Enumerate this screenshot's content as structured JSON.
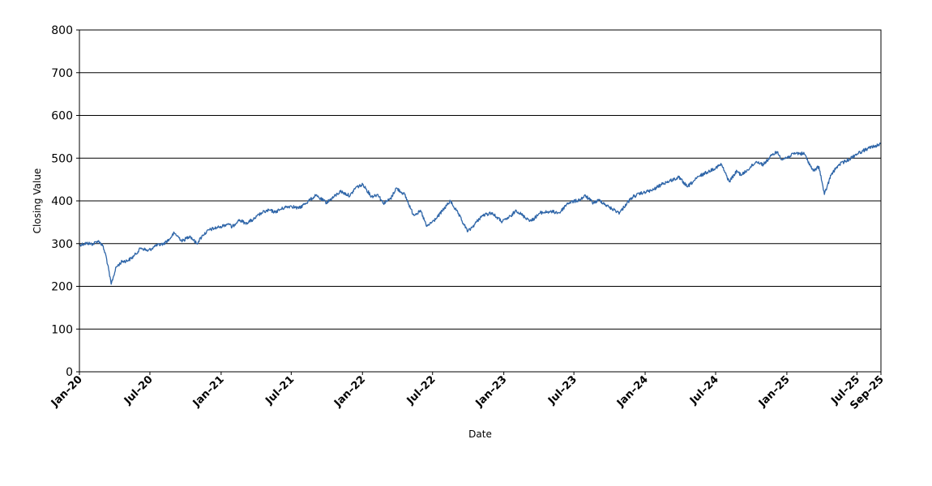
{
  "chart_data": {
    "type": "line",
    "title": "",
    "xlabel": "Date",
    "ylabel": "Closing Value",
    "ylim": [
      0,
      800
    ],
    "yticks": [
      "0",
      "100",
      "200",
      "300",
      "400",
      "500",
      "600",
      "700",
      "800"
    ],
    "xlim": [
      "2020-01-01",
      "2025-09-01"
    ],
    "xticks": [
      {
        "label": "Jan–20",
        "date": "2020-01-01"
      },
      {
        "label": "Jul–20",
        "date": "2020-07-01"
      },
      {
        "label": "Jan–21",
        "date": "2021-01-01"
      },
      {
        "label": "Jul–21",
        "date": "2021-07-01"
      },
      {
        "label": "Jan–22",
        "date": "2022-01-01"
      },
      {
        "label": "Jul–22",
        "date": "2022-07-01"
      },
      {
        "label": "Jan–23",
        "date": "2023-01-01"
      },
      {
        "label": "Jul–23",
        "date": "2023-07-01"
      },
      {
        "label": "Jan–24",
        "date": "2024-01-01"
      },
      {
        "label": "Jul–24",
        "date": "2024-07-01"
      },
      {
        "label": "Jan–25",
        "date": "2025-01-01"
      },
      {
        "label": "Jul–25",
        "date": "2025-07-01"
      },
      {
        "label": "Sep–25",
        "date": "2025-09-01"
      }
    ],
    "grid": true,
    "line_color": "#2e65a8",
    "series": [
      {
        "points": [
          [
            "2020-01-01",
            297
          ],
          [
            "2020-01-20",
            301
          ],
          [
            "2020-02-05",
            299
          ],
          [
            "2020-02-19",
            307
          ],
          [
            "2020-03-01",
            295
          ],
          [
            "2020-03-10",
            270
          ],
          [
            "2020-03-23",
            205
          ],
          [
            "2020-04-05",
            245
          ],
          [
            "2020-04-20",
            258
          ],
          [
            "2020-05-05",
            260
          ],
          [
            "2020-05-20",
            270
          ],
          [
            "2020-06-08",
            290
          ],
          [
            "2020-06-26",
            283
          ],
          [
            "2020-07-15",
            294
          ],
          [
            "2020-08-05",
            300
          ],
          [
            "2020-08-20",
            310
          ],
          [
            "2020-09-02",
            325
          ],
          [
            "2020-09-23",
            306
          ],
          [
            "2020-10-12",
            318
          ],
          [
            "2020-10-30",
            300
          ],
          [
            "2020-11-15",
            320
          ],
          [
            "2020-12-01",
            332
          ],
          [
            "2020-12-31",
            340
          ],
          [
            "2021-01-20",
            347
          ],
          [
            "2021-01-29",
            338
          ],
          [
            "2021-02-15",
            356
          ],
          [
            "2021-03-05",
            348
          ],
          [
            "2021-03-25",
            356
          ],
          [
            "2021-04-15",
            372
          ],
          [
            "2021-05-05",
            378
          ],
          [
            "2021-05-20",
            374
          ],
          [
            "2021-06-15",
            385
          ],
          [
            "2021-07-01",
            388
          ],
          [
            "2021-07-20",
            382
          ],
          [
            "2021-08-15",
            400
          ],
          [
            "2021-09-02",
            412
          ],
          [
            "2021-09-30",
            396
          ],
          [
            "2021-10-20",
            410
          ],
          [
            "2021-11-05",
            422
          ],
          [
            "2021-11-30",
            412
          ],
          [
            "2021-12-15",
            432
          ],
          [
            "2022-01-03",
            438
          ],
          [
            "2022-01-24",
            410
          ],
          [
            "2022-02-10",
            415
          ],
          [
            "2022-02-24",
            394
          ],
          [
            "2022-03-15",
            405
          ],
          [
            "2022-03-29",
            430
          ],
          [
            "2022-04-20",
            415
          ],
          [
            "2022-05-12",
            368
          ],
          [
            "2022-06-01",
            375
          ],
          [
            "2022-06-16",
            340
          ],
          [
            "2022-07-10",
            358
          ],
          [
            "2022-08-16",
            400
          ],
          [
            "2022-09-05",
            370
          ],
          [
            "2022-09-30",
            328
          ],
          [
            "2022-10-13",
            340
          ],
          [
            "2022-11-05",
            365
          ],
          [
            "2022-11-30",
            372
          ],
          [
            "2022-12-28",
            351
          ],
          [
            "2023-01-20",
            365
          ],
          [
            "2023-02-02",
            378
          ],
          [
            "2023-02-24",
            362
          ],
          [
            "2023-03-13",
            353
          ],
          [
            "2023-04-05",
            372
          ],
          [
            "2023-05-01",
            375
          ],
          [
            "2023-05-25",
            372
          ],
          [
            "2023-06-15",
            395
          ],
          [
            "2023-07-15",
            402
          ],
          [
            "2023-07-31",
            412
          ],
          [
            "2023-08-20",
            395
          ],
          [
            "2023-09-05",
            402
          ],
          [
            "2023-09-30",
            385
          ],
          [
            "2023-10-27",
            372
          ],
          [
            "2023-11-15",
            395
          ],
          [
            "2023-12-01",
            410
          ],
          [
            "2023-12-28",
            420
          ],
          [
            "2024-01-20",
            425
          ],
          [
            "2024-02-15",
            440
          ],
          [
            "2024-03-28",
            455
          ],
          [
            "2024-04-19",
            433
          ],
          [
            "2024-05-20",
            458
          ],
          [
            "2024-06-15",
            470
          ],
          [
            "2024-07-16",
            485
          ],
          [
            "2024-08-05",
            445
          ],
          [
            "2024-08-25",
            470
          ],
          [
            "2024-09-06",
            460
          ],
          [
            "2024-10-15",
            492
          ],
          [
            "2024-11-01",
            485
          ],
          [
            "2024-11-25",
            508
          ],
          [
            "2024-12-06",
            515
          ],
          [
            "2024-12-20",
            497
          ],
          [
            "2025-01-10",
            505
          ],
          [
            "2025-01-22",
            512
          ],
          [
            "2025-02-15",
            510
          ],
          [
            "2025-03-10",
            470
          ],
          [
            "2025-03-25",
            480
          ],
          [
            "2025-04-08",
            415
          ],
          [
            "2025-04-25",
            460
          ],
          [
            "2025-05-15",
            485
          ],
          [
            "2025-06-10",
            497
          ],
          [
            "2025-07-01",
            510
          ],
          [
            "2025-07-28",
            522
          ],
          [
            "2025-08-15",
            528
          ],
          [
            "2025-09-01",
            533
          ]
        ]
      }
    ]
  }
}
